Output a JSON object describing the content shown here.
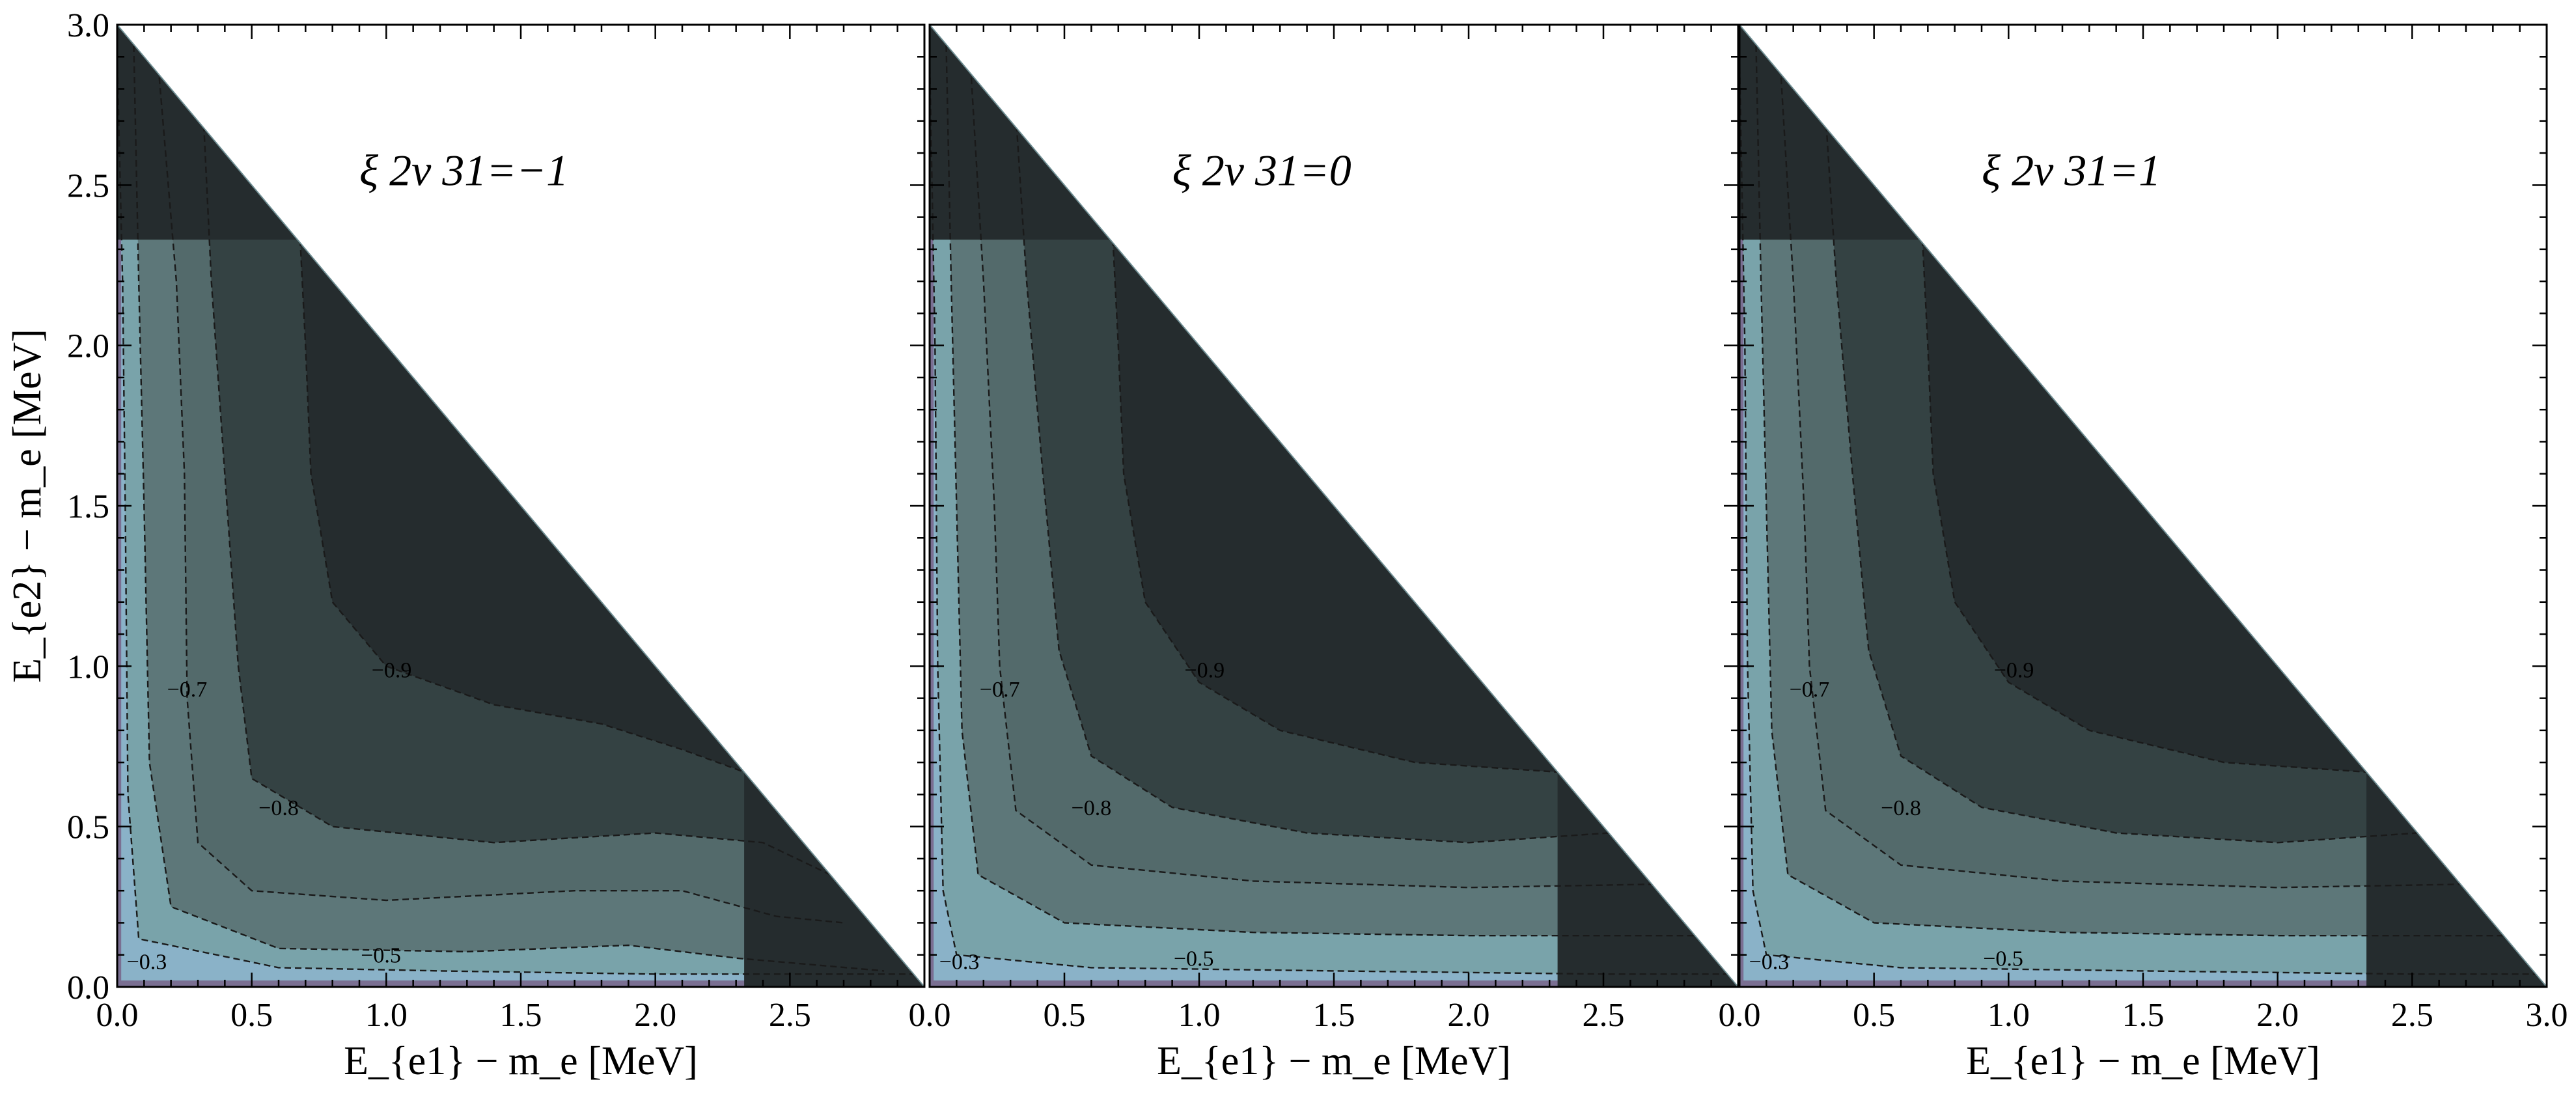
{
  "chart_data": {
    "type": "heatmap",
    "subtype": "filled-contour",
    "layout": "three panels side by side, shared y axis",
    "colors": [
      "#7a6f92",
      "#8ab2c8",
      "#79a3aa",
      "#5d7779",
      "#536a6b",
      "#344243",
      "#252c2e"
    ],
    "contour_levels": [
      -0.3,
      -0.5,
      -0.7,
      -0.8,
      -0.9
    ],
    "domain": "triangle x + y <= 3.0 MeV (white outside)",
    "xlabel": "E_{e1} − m_e [MeV]",
    "ylabel": "E_{e2} − m_e [MeV]",
    "xlim": [
      0,
      3.0
    ],
    "ylim": [
      0,
      3.0
    ],
    "y_ticks": [
      "0.0",
      "0.5",
      "1.0",
      "1.5",
      "2.0",
      "2.5",
      "3.0"
    ],
    "grid": false,
    "panels": [
      {
        "annotation": "ξ 2ν 31=−1",
        "xi": -1,
        "x_ticks": [
          "0.0",
          "0.5",
          "1.0",
          "1.5",
          "2.0",
          "2.5"
        ],
        "contours": [
          {
            "level": -0.3,
            "points": [
              [
                0.0,
                2.9
              ],
              [
                0.02,
                2.2
              ],
              [
                0.03,
                1.5
              ],
              [
                0.04,
                0.6
              ],
              [
                0.08,
                0.15
              ],
              [
                0.6,
                0.06
              ],
              [
                1.2,
                0.05
              ],
              [
                2.0,
                0.04
              ],
              [
                2.96,
                0.04
              ]
            ]
          },
          {
            "level": -0.5,
            "points": [
              [
                0.06,
                3.0
              ],
              [
                0.08,
                2.2
              ],
              [
                0.1,
                1.5
              ],
              [
                0.12,
                0.7
              ],
              [
                0.2,
                0.25
              ],
              [
                0.6,
                0.12
              ],
              [
                1.3,
                0.11
              ],
              [
                1.9,
                0.13
              ],
              [
                2.3,
                0.09
              ],
              [
                2.85,
                0.05
              ]
            ]
          },
          {
            "level": -0.7,
            "points": [
              [
                0.15,
                2.9
              ],
              [
                0.22,
                2.2
              ],
              [
                0.25,
                1.6
              ],
              [
                0.26,
                0.9
              ],
              [
                0.3,
                0.45
              ],
              [
                0.5,
                0.3
              ],
              [
                1.0,
                0.27
              ],
              [
                1.7,
                0.3
              ],
              [
                2.1,
                0.3
              ],
              [
                2.45,
                0.22
              ],
              [
                2.7,
                0.2
              ]
            ]
          },
          {
            "level": -0.8,
            "points": [
              [
                0.32,
                2.72
              ],
              [
                0.35,
                2.2
              ],
              [
                0.4,
                1.6
              ],
              [
                0.45,
                1.0
              ],
              [
                0.5,
                0.65
              ],
              [
                0.8,
                0.5
              ],
              [
                1.4,
                0.45
              ],
              [
                2.0,
                0.48
              ],
              [
                2.4,
                0.45
              ],
              [
                2.7,
                0.33
              ]
            ]
          },
          {
            "level": -0.9,
            "points": [
              [
                0.68,
                2.33
              ],
              [
                0.7,
                2.0
              ],
              [
                0.72,
                1.6
              ],
              [
                0.8,
                1.2
              ],
              [
                1.0,
                1.0
              ],
              [
                1.4,
                0.88
              ],
              [
                1.8,
                0.82
              ],
              [
                2.1,
                0.74
              ],
              [
                2.33,
                0.67
              ]
            ]
          }
        ],
        "contour_labels": [
          {
            "text": "−0.3",
            "at": [
              0.11,
              0.08
            ]
          },
          {
            "text": "−0.5",
            "at": [
              0.98,
              0.1
            ]
          },
          {
            "text": "−0.7",
            "at": [
              0.26,
              0.93
            ]
          },
          {
            "text": "−0.8",
            "at": [
              0.6,
              0.56
            ]
          },
          {
            "text": "−0.9",
            "at": [
              1.02,
              0.99
            ]
          }
        ]
      },
      {
        "annotation": "ξ 2ν 31=0",
        "xi": 0,
        "x_ticks": [
          "0.0",
          "0.5",
          "1.0",
          "1.5",
          "2.0",
          "2.5"
        ],
        "contours": [
          {
            "level": -0.3,
            "points": [
              [
                0.0,
                2.9
              ],
              [
                0.02,
                2.0
              ],
              [
                0.03,
                1.0
              ],
              [
                0.05,
                0.3
              ],
              [
                0.1,
                0.1
              ],
              [
                0.6,
                0.06
              ],
              [
                1.5,
                0.05
              ],
              [
                2.5,
                0.04
              ],
              [
                2.96,
                0.04
              ]
            ]
          },
          {
            "level": -0.5,
            "points": [
              [
                0.06,
                3.0
              ],
              [
                0.08,
                2.2
              ],
              [
                0.1,
                1.5
              ],
              [
                0.12,
                0.8
              ],
              [
                0.18,
                0.35
              ],
              [
                0.5,
                0.2
              ],
              [
                1.2,
                0.17
              ],
              [
                2.0,
                0.16
              ],
              [
                2.84,
                0.16
              ]
            ]
          },
          {
            "level": -0.7,
            "points": [
              [
                0.15,
                2.9
              ],
              [
                0.2,
                2.2
              ],
              [
                0.24,
                1.5
              ],
              [
                0.26,
                1.0
              ],
              [
                0.32,
                0.55
              ],
              [
                0.6,
                0.38
              ],
              [
                1.2,
                0.33
              ],
              [
                2.0,
                0.31
              ],
              [
                2.68,
                0.32
              ]
            ]
          },
          {
            "level": -0.8,
            "points": [
              [
                0.32,
                2.72
              ],
              [
                0.36,
                2.2
              ],
              [
                0.42,
                1.6
              ],
              [
                0.48,
                1.05
              ],
              [
                0.6,
                0.72
              ],
              [
                0.9,
                0.56
              ],
              [
                1.4,
                0.48
              ],
              [
                2.0,
                0.45
              ],
              [
                2.52,
                0.48
              ]
            ]
          },
          {
            "level": -0.9,
            "points": [
              [
                0.68,
                2.33
              ],
              [
                0.7,
                2.0
              ],
              [
                0.72,
                1.6
              ],
              [
                0.8,
                1.2
              ],
              [
                1.0,
                0.95
              ],
              [
                1.3,
                0.8
              ],
              [
                1.8,
                0.7
              ],
              [
                2.33,
                0.67
              ]
            ]
          }
        ],
        "contour_labels": [
          {
            "text": "−0.3",
            "at": [
              0.11,
              0.08
            ]
          },
          {
            "text": "−0.5",
            "at": [
              0.98,
              0.09
            ]
          },
          {
            "text": "−0.7",
            "at": [
              0.26,
              0.93
            ]
          },
          {
            "text": "−0.8",
            "at": [
              0.6,
              0.56
            ]
          },
          {
            "text": "−0.9",
            "at": [
              1.02,
              0.99
            ]
          }
        ]
      },
      {
        "annotation": "ξ 2ν 31=1",
        "xi": 1,
        "x_ticks": [
          "0.0",
          "0.5",
          "1.0",
          "1.5",
          "2.0",
          "2.5",
          "3.0"
        ],
        "contours": [
          {
            "level": -0.3,
            "points": [
              [
                0.0,
                2.9
              ],
              [
                0.02,
                2.0
              ],
              [
                0.03,
                1.0
              ],
              [
                0.05,
                0.3
              ],
              [
                0.1,
                0.1
              ],
              [
                0.6,
                0.06
              ],
              [
                1.5,
                0.05
              ],
              [
                2.5,
                0.04
              ],
              [
                2.96,
                0.04
              ]
            ]
          },
          {
            "level": -0.5,
            "points": [
              [
                0.06,
                3.0
              ],
              [
                0.08,
                2.2
              ],
              [
                0.1,
                1.5
              ],
              [
                0.12,
                0.8
              ],
              [
                0.18,
                0.35
              ],
              [
                0.5,
                0.2
              ],
              [
                1.2,
                0.17
              ],
              [
                2.0,
                0.16
              ],
              [
                2.84,
                0.16
              ]
            ]
          },
          {
            "level": -0.7,
            "points": [
              [
                0.15,
                2.9
              ],
              [
                0.2,
                2.2
              ],
              [
                0.24,
                1.5
              ],
              [
                0.26,
                1.0
              ],
              [
                0.32,
                0.55
              ],
              [
                0.6,
                0.38
              ],
              [
                1.2,
                0.33
              ],
              [
                2.0,
                0.31
              ],
              [
                2.68,
                0.32
              ]
            ]
          },
          {
            "level": -0.8,
            "points": [
              [
                0.32,
                2.72
              ],
              [
                0.36,
                2.2
              ],
              [
                0.42,
                1.6
              ],
              [
                0.48,
                1.05
              ],
              [
                0.6,
                0.72
              ],
              [
                0.9,
                0.56
              ],
              [
                1.4,
                0.48
              ],
              [
                2.0,
                0.45
              ],
              [
                2.52,
                0.48
              ]
            ]
          },
          {
            "level": -0.9,
            "points": [
              [
                0.68,
                2.33
              ],
              [
                0.7,
                2.0
              ],
              [
                0.72,
                1.6
              ],
              [
                0.8,
                1.2
              ],
              [
                1.0,
                0.95
              ],
              [
                1.3,
                0.8
              ],
              [
                1.8,
                0.7
              ],
              [
                2.33,
                0.67
              ]
            ]
          }
        ],
        "contour_labels": [
          {
            "text": "−0.3",
            "at": [
              0.11,
              0.08
            ]
          },
          {
            "text": "−0.5",
            "at": [
              0.98,
              0.09
            ]
          },
          {
            "text": "−0.7",
            "at": [
              0.26,
              0.93
            ]
          },
          {
            "text": "−0.8",
            "at": [
              0.6,
              0.56
            ]
          },
          {
            "text": "−0.9",
            "at": [
              1.02,
              0.99
            ]
          }
        ]
      }
    ]
  }
}
